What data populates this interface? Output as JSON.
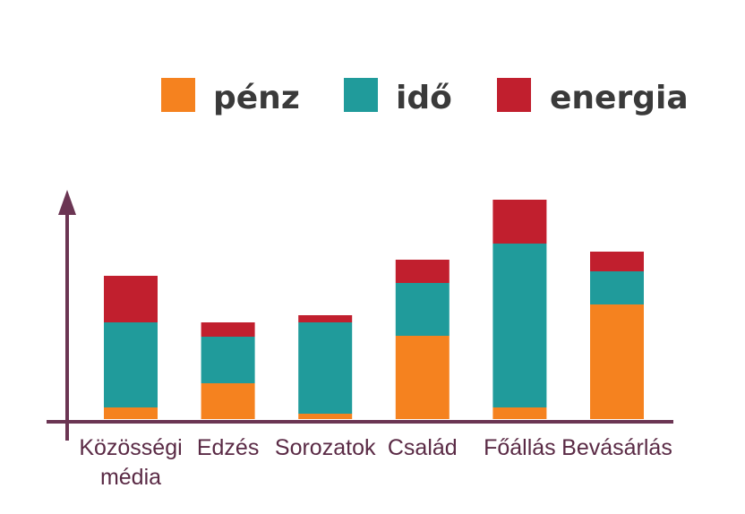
{
  "chart_data": {
    "type": "bar",
    "stacked": true,
    "categories": [
      [
        "Közösségi",
        "média"
      ],
      [
        "Edzés"
      ],
      [
        "Sorozatok"
      ],
      [
        "Család"
      ],
      [
        "Főállás"
      ],
      [
        "Bevásárlás"
      ]
    ],
    "series": [
      {
        "name": "pénz",
        "color": "#f5821f",
        "values": [
          13,
          40,
          6,
          93,
          13,
          128
        ]
      },
      {
        "name": "idő",
        "color": "#209b9b",
        "values": [
          95,
          52,
          102,
          59,
          183,
          37
        ]
      },
      {
        "name": "energia",
        "color": "#c11f2e",
        "values": [
          52,
          16,
          8,
          26,
          49,
          22
        ]
      }
    ],
    "ylim": [
      0,
      250
    ],
    "legend": "top",
    "grid": false,
    "axis_color": "#6b3553"
  }
}
